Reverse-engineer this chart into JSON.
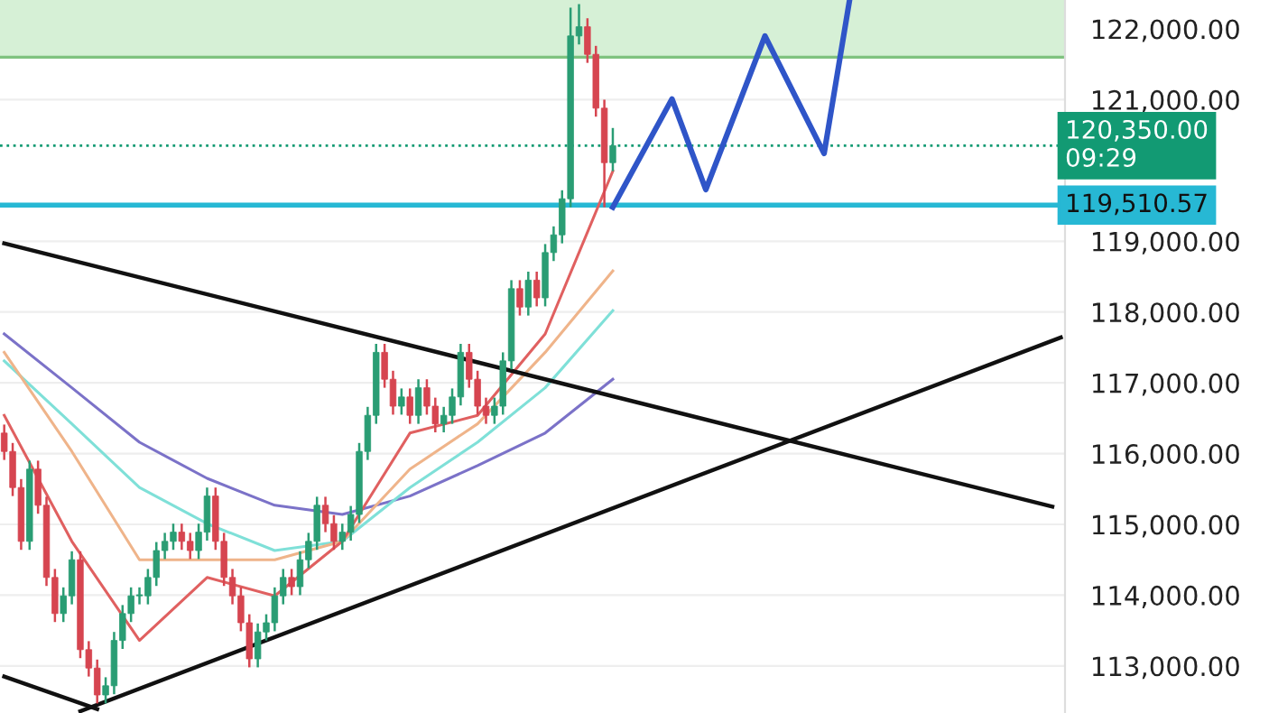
{
  "chart_data": {
    "type": "candlestick",
    "categories": [
      null,
      null,
      null,
      null,
      null,
      null,
      null,
      null,
      null,
      null,
      null,
      null,
      null,
      null,
      null,
      null,
      null,
      null,
      null,
      null,
      null,
      null,
      null,
      null,
      null,
      null,
      null,
      null,
      null,
      null,
      null,
      null,
      null,
      null,
      null,
      null,
      null,
      null,
      null,
      null,
      null,
      null,
      null,
      null,
      null,
      null,
      null,
      null,
      null,
      null,
      null,
      null,
      null,
      null,
      null,
      null,
      null,
      null,
      null,
      null,
      null,
      null,
      null,
      null,
      null,
      null,
      null,
      null,
      null,
      null,
      null,
      null,
      null,
      null,
      null,
      null,
      null,
      null,
      null,
      null,
      null,
      null,
      null,
      null,
      null,
      null,
      null,
      null,
      null,
      null,
      null,
      null,
      null,
      null,
      null,
      null,
      null,
      null,
      null,
      null,
      null,
      null,
      null,
      null,
      null,
      null,
      null,
      null,
      null,
      null,
      null,
      null,
      null,
      null,
      null,
      null,
      null,
      null,
      null,
      null,
      null,
      null,
      null,
      null,
      null,
      null
    ],
    "ohlc": [
      [
        116290,
        116410,
        115910,
        116030
      ],
      [
        116030,
        116150,
        115400,
        115520
      ],
      [
        115520,
        115640,
        114640,
        114760
      ],
      [
        114760,
        115900,
        114640,
        115780
      ],
      [
        115780,
        115900,
        115150,
        115270
      ],
      [
        115270,
        115390,
        114130,
        114250
      ],
      [
        114250,
        114370,
        113620,
        113740
      ],
      [
        113740,
        114110,
        113620,
        113990
      ],
      [
        113990,
        114620,
        113870,
        114500
      ],
      [
        114500,
        114620,
        113110,
        113230
      ],
      [
        113230,
        113350,
        112850,
        112970
      ],
      [
        112970,
        113090,
        112470,
        112590
      ],
      [
        112590,
        112840,
        112470,
        112720
      ],
      [
        112720,
        113480,
        112600,
        113360
      ],
      [
        113360,
        113860,
        113240,
        113740
      ],
      [
        113740,
        114110,
        113620,
        113990
      ],
      [
        113990,
        114110,
        113870,
        113990
      ],
      [
        113990,
        114370,
        113870,
        114250
      ],
      [
        114250,
        114750,
        114130,
        114630
      ],
      [
        114630,
        114880,
        114510,
        114760
      ],
      [
        114760,
        115010,
        114640,
        114890
      ],
      [
        114890,
        115010,
        114640,
        114760
      ],
      [
        114760,
        114880,
        114510,
        114630
      ],
      [
        114630,
        115010,
        114510,
        114890
      ],
      [
        114890,
        115520,
        114770,
        115400
      ],
      [
        115400,
        115520,
        114640,
        114760
      ],
      [
        114760,
        114880,
        114130,
        114250
      ],
      [
        114250,
        114370,
        113870,
        113990
      ],
      [
        113990,
        114110,
        113490,
        113610
      ],
      [
        113610,
        113730,
        112980,
        113100
      ],
      [
        113100,
        113600,
        112980,
        113480
      ],
      [
        113480,
        113730,
        113360,
        113610
      ],
      [
        113610,
        114110,
        113490,
        113990
      ],
      [
        113990,
        114370,
        113870,
        114250
      ],
      [
        114250,
        114370,
        114000,
        114120
      ],
      [
        114120,
        114620,
        114000,
        114500
      ],
      [
        114500,
        114880,
        114380,
        114760
      ],
      [
        114760,
        115390,
        114640,
        115270
      ],
      [
        115270,
        115390,
        114890,
        115010
      ],
      [
        115010,
        115130,
        114640,
        114760
      ],
      [
        114760,
        115010,
        114640,
        114890
      ],
      [
        114890,
        115260,
        114770,
        115140
      ],
      [
        115140,
        116150,
        115020,
        116030
      ],
      [
        116030,
        116660,
        115910,
        116540
      ],
      [
        116540,
        117550,
        116420,
        117430
      ],
      [
        117430,
        117550,
        116930,
        117050
      ],
      [
        117050,
        117170,
        116550,
        116670
      ],
      [
        116670,
        116920,
        116550,
        116800
      ],
      [
        116800,
        116920,
        116420,
        116540
      ],
      [
        116540,
        117050,
        116420,
        116930
      ],
      [
        116930,
        117050,
        116550,
        116670
      ],
      [
        116670,
        116790,
        116300,
        116420
      ],
      [
        116420,
        116660,
        116300,
        116540
      ],
      [
        116540,
        116920,
        116420,
        116800
      ],
      [
        116800,
        117550,
        116680,
        117430
      ],
      [
        117430,
        117550,
        116930,
        117050
      ],
      [
        117050,
        117170,
        116550,
        116670
      ],
      [
        116670,
        116790,
        116420,
        116540
      ],
      [
        116540,
        116790,
        116420,
        116670
      ],
      [
        116670,
        117430,
        116550,
        117310
      ],
      [
        117310,
        118450,
        117190,
        118330
      ],
      [
        118330,
        118450,
        117950,
        118070
      ],
      [
        118070,
        118570,
        117950,
        118450
      ],
      [
        118450,
        118570,
        118080,
        118200
      ],
      [
        118200,
        118960,
        118080,
        118840
      ],
      [
        118840,
        119210,
        118720,
        119090
      ],
      [
        119090,
        119720,
        118970,
        119600
      ],
      [
        119600,
        122300,
        119480,
        121900
      ],
      [
        121900,
        122350,
        121780,
        122030
      ],
      [
        122030,
        122150,
        121520,
        121640
      ],
      [
        121640,
        121760,
        120760,
        120880
      ],
      [
        120880,
        121000,
        119480,
        120110
      ],
      [
        120110,
        120600,
        119990,
        120350
      ],
      null,
      null,
      null,
      null,
      null,
      null,
      null,
      null,
      null,
      null,
      null,
      null,
      null,
      null,
      null,
      null,
      null,
      null,
      null,
      null,
      null,
      null,
      null,
      null,
      null,
      null,
      null,
      null,
      null,
      null,
      null,
      null,
      null,
      null,
      null,
      null,
      null,
      null,
      null,
      null,
      null,
      null,
      null,
      null,
      null,
      null,
      null,
      null,
      null,
      null,
      null,
      null,
      null
    ],
    "series": [
      {
        "type": "line",
        "color": "#7b72c8",
        "values": [
          117690,
          null,
          null,
          null,
          null,
          null,
          null,
          null,
          116930,
          null,
          null,
          null,
          null,
          null,
          null,
          null,
          116160,
          null,
          null,
          null,
          null,
          null,
          null,
          null,
          115650,
          null,
          null,
          null,
          null,
          null,
          null,
          null,
          115270,
          null,
          null,
          null,
          null,
          null,
          null,
          null,
          115140,
          null,
          null,
          null,
          null,
          null,
          null,
          null,
          115400,
          null,
          null,
          null,
          null,
          null,
          null,
          null,
          115830,
          null,
          null,
          null,
          null,
          null,
          null,
          null,
          116290,
          null,
          null,
          null,
          null,
          null,
          null,
          null,
          117050,
          null,
          null,
          null,
          null,
          null,
          null,
          null,
          null,
          null,
          null,
          null,
          null,
          null,
          null,
          null,
          null,
          null,
          null,
          null,
          null,
          null,
          null,
          null,
          null,
          null,
          null,
          null,
          null,
          null,
          null,
          null,
          null,
          null,
          null,
          null,
          null,
          null,
          null,
          null,
          null,
          null,
          null,
          null,
          null,
          null,
          null,
          null,
          null,
          null,
          null,
          null,
          null,
          null
        ]
      },
      {
        "type": "line",
        "color": "#7fe0d8",
        "values": [
          117310,
          null,
          null,
          null,
          null,
          null,
          null,
          null,
          116420,
          null,
          null,
          null,
          null,
          null,
          null,
          null,
          115520,
          null,
          null,
          null,
          null,
          null,
          null,
          null,
          115010,
          null,
          null,
          null,
          null,
          null,
          null,
          null,
          114630,
          null,
          null,
          null,
          null,
          null,
          null,
          null,
          114760,
          null,
          null,
          null,
          null,
          null,
          null,
          null,
          115520,
          null,
          null,
          null,
          null,
          null,
          null,
          null,
          116160,
          null,
          null,
          null,
          null,
          null,
          null,
          null,
          116930,
          null,
          null,
          null,
          null,
          null,
          null,
          null,
          118020,
          null,
          null,
          null,
          null,
          null,
          null,
          null,
          null,
          null,
          null,
          null,
          null,
          null,
          null,
          null,
          null,
          null,
          null,
          null,
          null,
          null,
          null,
          null,
          null,
          null,
          null,
          null,
          null,
          null,
          null,
          null,
          null,
          null,
          null,
          null,
          null,
          null,
          null,
          null,
          null,
          null,
          null,
          null,
          null,
          null,
          null,
          null,
          null,
          null,
          null,
          null,
          null,
          null
        ]
      },
      {
        "type": "line",
        "color": "#efb48a",
        "values": [
          117430,
          null,
          null,
          null,
          null,
          null,
          null,
          null,
          116030,
          null,
          null,
          null,
          null,
          null,
          null,
          null,
          114500,
          null,
          null,
          null,
          null,
          null,
          null,
          null,
          114500,
          null,
          null,
          null,
          null,
          null,
          null,
          null,
          114500,
          null,
          null,
          null,
          null,
          null,
          null,
          null,
          114760,
          null,
          null,
          null,
          null,
          null,
          null,
          null,
          115780,
          null,
          null,
          null,
          null,
          null,
          null,
          null,
          116420,
          null,
          null,
          null,
          null,
          null,
          null,
          null,
          117430,
          null,
          null,
          null,
          null,
          null,
          null,
          null,
          118580,
          null,
          null,
          null,
          null,
          null,
          null,
          null,
          null,
          null,
          null,
          null,
          null,
          null,
          null,
          null,
          null,
          null,
          null,
          null,
          null,
          null,
          null,
          null,
          null,
          null,
          null,
          null,
          null,
          null,
          null,
          null,
          null,
          null,
          null,
          null,
          null,
          null,
          null,
          null,
          null,
          null,
          null,
          null,
          null,
          null,
          null,
          null,
          null,
          null,
          null,
          null,
          null,
          null
        ]
      },
      {
        "type": "line",
        "color": "#e06060",
        "values": [
          116540,
          null,
          null,
          null,
          null,
          null,
          null,
          null,
          114760,
          null,
          null,
          null,
          null,
          null,
          null,
          null,
          113360,
          null,
          null,
          null,
          null,
          null,
          null,
          null,
          114250,
          null,
          null,
          null,
          null,
          null,
          null,
          null,
          113990,
          null,
          null,
          null,
          null,
          null,
          null,
          null,
          114760,
          null,
          null,
          null,
          null,
          null,
          null,
          null,
          116290,
          null,
          null,
          null,
          null,
          null,
          null,
          null,
          116540,
          null,
          null,
          null,
          null,
          null,
          null,
          null,
          117690,
          null,
          null,
          null,
          null,
          null,
          null,
          null,
          119990,
          null,
          null,
          null,
          null,
          null,
          null,
          null,
          null,
          null,
          null,
          null,
          null,
          null,
          null,
          null,
          null,
          null,
          null,
          null,
          null,
          null,
          null,
          null,
          null,
          null,
          null,
          null,
          null,
          null,
          null,
          null,
          null,
          null,
          null,
          null,
          null,
          null,
          null,
          null,
          null,
          null,
          null,
          null,
          null,
          null,
          null,
          null,
          null,
          null,
          null,
          null,
          null,
          null
        ]
      },
      {
        "type": "line",
        "color": "#111111",
        "values": [
          118970,
          null,
          null,
          null,
          null,
          null,
          null,
          null,
          null,
          null,
          null,
          null,
          null,
          null,
          null,
          null,
          null,
          null,
          null,
          null,
          null,
          null,
          null,
          null,
          null,
          null,
          null,
          null,
          null,
          null,
          null,
          null,
          null,
          null,
          null,
          null,
          null,
          null,
          null,
          null,
          null,
          null,
          null,
          null,
          null,
          null,
          null,
          null,
          null,
          null,
          null,
          null,
          null,
          null,
          null,
          null,
          null,
          null,
          null,
          null,
          null,
          null,
          null,
          null,
          null,
          null,
          null,
          null,
          null,
          null,
          null,
          null,
          null,
          null,
          null,
          null,
          null,
          null,
          null,
          null,
          null,
          null,
          null,
          null,
          null,
          null,
          null,
          null,
          null,
          null,
          null,
          null,
          null,
          null,
          null,
          null,
          null,
          null,
          null,
          null,
          null,
          null,
          null,
          null,
          null,
          null,
          null,
          null,
          null,
          null,
          null,
          null,
          null,
          null,
          null,
          null,
          null,
          null,
          null,
          null,
          null,
          null,
          null,
          null,
          115250,
          null
        ]
      },
      {
        "type": "line",
        "color": "#111111",
        "values": [
          null,
          null,
          null,
          null,
          null,
          null,
          null,
          null,
          null,
          112360,
          null,
          null,
          null,
          null,
          null,
          null,
          null,
          null,
          null,
          null,
          null,
          null,
          null,
          null,
          null,
          null,
          null,
          null,
          null,
          null,
          null,
          null,
          null,
          null,
          null,
          null,
          null,
          null,
          null,
          null,
          null,
          null,
          null,
          null,
          null,
          null,
          null,
          null,
          null,
          null,
          null,
          null,
          null,
          null,
          null,
          null,
          null,
          null,
          null,
          null,
          null,
          null,
          null,
          null,
          null,
          null,
          null,
          null,
          null,
          null,
          null,
          null,
          null,
          null,
          null,
          null,
          null,
          null,
          null,
          null,
          null,
          null,
          null,
          null,
          null,
          null,
          null,
          null,
          null,
          null,
          null,
          null,
          null,
          null,
          null,
          null,
          null,
          null,
          null,
          null,
          null,
          null,
          null,
          null,
          null,
          null,
          null,
          null,
          null,
          null,
          null,
          null,
          null,
          null,
          null,
          null,
          null,
          null,
          null,
          null,
          null,
          null,
          null,
          null,
          null,
          117640
        ]
      },
      {
        "type": "line",
        "color": "#111111",
        "values": [
          112850,
          null,
          null,
          null,
          null,
          null,
          null,
          null,
          null,
          null,
          null,
          112390,
          null,
          null,
          null,
          null,
          null,
          null,
          null,
          null,
          null,
          null,
          null,
          null,
          null,
          null,
          null,
          null,
          null,
          null,
          null,
          null,
          null,
          null,
          null,
          null,
          null,
          null,
          null,
          null,
          null,
          null,
          null,
          null,
          null,
          null,
          null,
          null,
          null,
          null,
          null,
          null,
          null,
          null,
          null,
          null,
          null,
          null,
          null,
          null,
          null,
          null,
          null,
          null,
          null,
          null,
          null,
          null,
          null,
          null,
          null,
          null,
          null,
          null,
          null,
          null,
          null,
          null,
          null,
          null,
          null,
          null,
          null,
          null,
          null,
          null,
          null,
          null,
          null,
          null,
          null,
          null,
          null,
          null,
          null,
          null,
          null,
          null,
          null,
          null,
          null,
          null,
          null,
          null,
          null,
          null,
          null,
          null,
          null,
          null,
          null,
          null,
          null,
          null,
          null,
          null,
          null,
          null,
          null,
          null,
          null,
          null,
          null,
          null,
          null,
          null
        ]
      },
      {
        "type": "line",
        "color": "#2f55c8",
        "values": [
          null,
          null,
          null,
          null,
          null,
          null,
          null,
          null,
          null,
          null,
          null,
          null,
          null,
          null,
          null,
          null,
          null,
          null,
          null,
          null,
          null,
          null,
          null,
          null,
          null,
          null,
          null,
          null,
          null,
          null,
          null,
          null,
          null,
          null,
          null,
          null,
          null,
          null,
          null,
          null,
          null,
          null,
          null,
          null,
          null,
          null,
          null,
          null,
          null,
          null,
          null,
          null,
          null,
          null,
          null,
          null,
          null,
          null,
          null,
          null,
          null,
          null,
          null,
          null,
          null,
          null,
          null,
          null,
          null,
          null,
          null,
          null,
          119480,
          null,
          null,
          null,
          null,
          null,
          null,
          121010,
          null,
          null,
          null,
          119730,
          null,
          null,
          null,
          null,
          null,
          null,
          121900,
          null,
          null,
          null,
          null,
          null,
          null,
          120240,
          null,
          null,
          122400,
          null,
          null,
          null,
          null,
          null,
          null,
          null,
          null,
          null,
          null,
          null,
          null,
          null,
          null,
          null,
          null,
          null,
          null,
          null,
          null,
          null,
          null,
          null,
          null,
          null
        ]
      }
    ],
    "ylim": [
      112335,
      122408
    ],
    "yticks": [
      {
        "value": 113000,
        "label": "113,000.00"
      },
      {
        "value": 114000,
        "label": "114,000.00"
      },
      {
        "value": 115000,
        "label": "115,000.00"
      },
      {
        "value": 116000,
        "label": "116,000.00"
      },
      {
        "value": 117000,
        "label": "117,000.00"
      },
      {
        "value": 118000,
        "label": "118,000.00"
      },
      {
        "value": 119000,
        "label": "119,000.00"
      },
      {
        "value": 121000,
        "label": "121,000.00"
      },
      {
        "value": 122000,
        "label": "122,000.00"
      }
    ],
    "ref_lines": [
      {
        "axis": "y",
        "value": 120350,
        "label": "120,350.00\n09:29",
        "color": "#129a73",
        "line_style": "dotted"
      },
      {
        "axis": "y",
        "value": 119510.57,
        "label": "119,510.57",
        "color": "#27b8d4",
        "line_style": "solid"
      },
      {
        "axis": "y",
        "value": 121600,
        "color": "#7fc27f",
        "line_style": "solid"
      }
    ],
    "bands": [
      {
        "axis": "y",
        "from": 121600,
        "to": 122408,
        "color": "#d6f0d6"
      }
    ],
    "grid": "y",
    "tick_labels": "y"
  }
}
